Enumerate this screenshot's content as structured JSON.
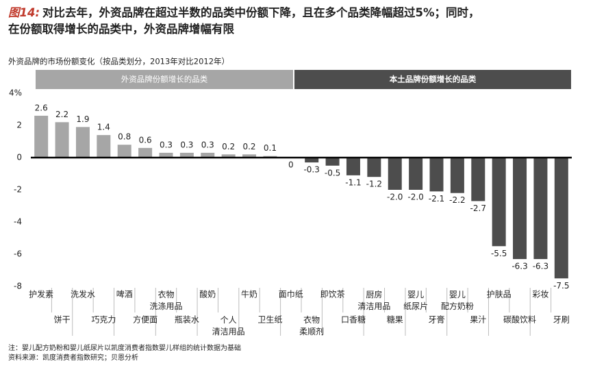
{
  "chart_data": {
    "type": "bar",
    "title_prefix": "图14:",
    "title": "对比去年，外资品牌在超过半数的品类中份额下降，且在多个品类降幅超过5%；同时，在份额取得增长的品类中，外资品牌增幅有限",
    "subtitle": "外资品牌的市场份额变化（按品类划分，2013年对比2012年）",
    "group_labels": [
      "外资品牌份额增长的品类",
      "本土品牌份额增长的品类"
    ],
    "categories": [
      "护发素",
      "饼干",
      "洗发水",
      "巧克力",
      "啤酒",
      "方便面",
      "衣物\n洗涤用品",
      "瓶装水",
      "酸奶",
      "个人\n清洁用品",
      "牛奶",
      "卫生纸",
      "面巾纸",
      "衣物\n柔顺剂",
      "即饮茶",
      "口香糖",
      "厨房\n清洁用品",
      "糖果",
      "婴儿\n纸尿片",
      "牙膏",
      "婴儿\n配方奶粉",
      "果汁",
      "护肤品",
      "碳酸饮料",
      "彩妆",
      "牙刷"
    ],
    "values": [
      2.6,
      2.2,
      1.9,
      1.4,
      0.8,
      0.6,
      0.3,
      0.3,
      0.3,
      0.2,
      0.2,
      0.1,
      0,
      -0.3,
      -0.5,
      -1.1,
      -1.2,
      -2.0,
      -2.0,
      -2.1,
      -2.2,
      -2.7,
      -5.5,
      -6.3,
      -6.3,
      -7.5
    ],
    "value_labels": [
      "2.6",
      "2.2",
      "1.9",
      "1.4",
      "0.8",
      "0.6",
      "0.3",
      "0.3",
      "0.3",
      "0.2",
      "0.2",
      "0.1",
      "0",
      "-0.3",
      "-0.5",
      "-1.1",
      "-1.2",
      "-2.0",
      "-2.0",
      "-2.1",
      "-2.2",
      "-2.7",
      "-5.5",
      "-6.3",
      "-6.3",
      "-7.5"
    ],
    "colors": [
      "#a6a6a6",
      "#a6a6a6",
      "#a6a6a6",
      "#a6a6a6",
      "#a6a6a6",
      "#a6a6a6",
      "#a6a6a6",
      "#a6a6a6",
      "#a6a6a6",
      "#a6a6a6",
      "#a6a6a6",
      "#a6a6a6",
      "#4d4d4d",
      "#4d4d4d",
      "#4d4d4d",
      "#4d4d4d",
      "#4d4d4d",
      "#4d4d4d",
      "#4d4d4d",
      "#4d4d4d",
      "#4d4d4d",
      "#4d4d4d",
      "#4d4d4d",
      "#4d4d4d",
      "#4d4d4d",
      "#4d4d4d"
    ],
    "ylim": [
      -8,
      4
    ],
    "yticks": [
      -8,
      -6,
      -4,
      -2,
      0,
      2,
      {
        "value": 4,
        "label": "4%"
      }
    ],
    "notes": [
      "注：婴儿配方奶粉和婴儿纸尿片以凯度消费者指数婴儿样组的统计数据为基础",
      "资料来源：凯度消费者指数研究；贝恩分析"
    ]
  }
}
